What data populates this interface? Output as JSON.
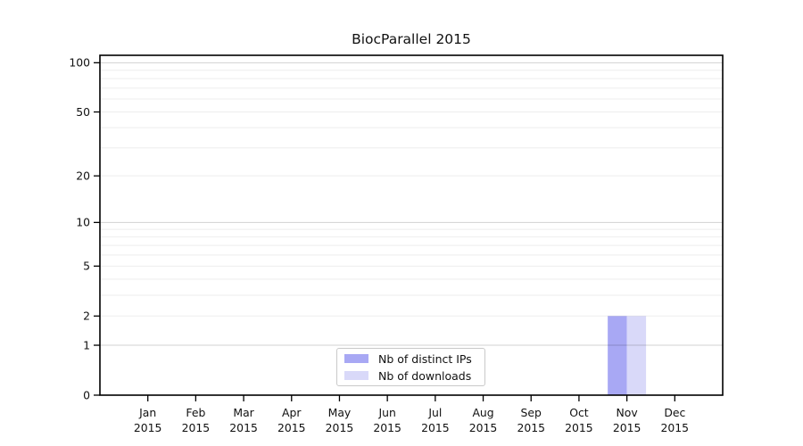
{
  "chart_data": {
    "type": "bar",
    "title": "BiocParallel 2015",
    "xlabel": "",
    "ylabel": "",
    "categories": [
      "Jan",
      "Feb",
      "Mar",
      "Apr",
      "May",
      "Jun",
      "Jul",
      "Aug",
      "Sep",
      "Oct",
      "Nov",
      "Dec"
    ],
    "year_label": "2015",
    "series": [
      {
        "name": "Nb of distinct IPs",
        "color": "#a8a8f4",
        "values": [
          0,
          0,
          0,
          0,
          0,
          0,
          0,
          0,
          0,
          0,
          2,
          0
        ]
      },
      {
        "name": "Nb of downloads",
        "color": "#d9d9f9",
        "values": [
          0,
          0,
          0,
          0,
          0,
          0,
          0,
          0,
          0,
          0,
          2,
          0
        ]
      }
    ],
    "y_scale": "log1p",
    "ylim": [
      0,
      111
    ],
    "y_ticks": [
      0,
      1,
      2,
      5,
      10,
      20,
      50,
      100
    ],
    "grid": "horizontal",
    "grid_major_values": [
      1,
      10,
      100
    ],
    "grid_minor_values": [
      2,
      3,
      4,
      5,
      6,
      7,
      8,
      9,
      20,
      30,
      40,
      50,
      60,
      70,
      80,
      90
    ],
    "legend_position": "lower center",
    "axis_color": "#000000",
    "grid_major_color": "rgba(0,0,0,0.18)",
    "grid_minor_color": "rgba(0,0,0,0.07)"
  }
}
